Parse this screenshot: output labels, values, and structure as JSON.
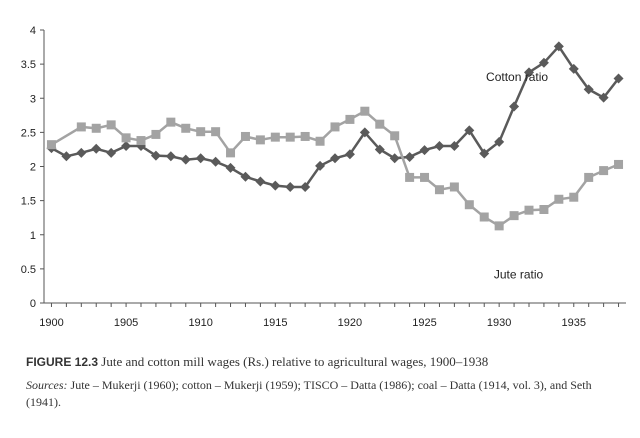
{
  "chart_data": {
    "type": "line",
    "title": "",
    "xlabel": "",
    "ylabel": "",
    "xlim": [
      1899.5,
      1938.5
    ],
    "ylim": [
      0,
      4
    ],
    "grid": false,
    "x_ticks": [
      1900,
      1905,
      1910,
      1915,
      1920,
      1925,
      1930,
      1935
    ],
    "y_ticks": [
      0,
      0.5,
      1,
      1.5,
      2,
      2.5,
      3,
      3.5,
      4
    ],
    "x_tick_labels": [
      "1900",
      "1905",
      "1910",
      "1915",
      "1920",
      "1925",
      "1930",
      "1935"
    ],
    "y_tick_labels": [
      "0",
      "0.5",
      "1",
      "1.5",
      "2",
      "2.5",
      "3",
      "3.5",
      "4"
    ],
    "series": [
      {
        "name": "Cotton ratio",
        "marker": "diamond",
        "color": "#5a5a5a",
        "x": [
          1900,
          1901,
          1902,
          1903,
          1904,
          1905,
          1906,
          1907,
          1908,
          1909,
          1910,
          1911,
          1912,
          1913,
          1914,
          1915,
          1916,
          1917,
          1918,
          1919,
          1920,
          1921,
          1922,
          1923,
          1924,
          1925,
          1926,
          1927,
          1928,
          1929,
          1930,
          1931,
          1932,
          1933,
          1934,
          1935,
          1936,
          1937,
          1938
        ],
        "values": [
          2.27,
          2.15,
          2.2,
          2.26,
          2.2,
          2.3,
          2.3,
          2.16,
          2.15,
          2.1,
          2.12,
          2.07,
          1.98,
          1.85,
          1.78,
          1.72,
          1.7,
          1.7,
          2.01,
          2.12,
          2.18,
          2.5,
          2.25,
          2.12,
          2.14,
          2.24,
          2.3,
          2.3,
          2.53,
          2.19,
          2.36,
          2.88,
          3.38,
          3.52,
          3.76,
          3.43,
          3.13,
          3.01,
          3.29
        ]
      },
      {
        "name": "Jute ratio",
        "marker": "square",
        "color": "#a3a3a3",
        "x": [
          1900,
          1902,
          1903,
          1904,
          1905,
          1906,
          1907,
          1908,
          1909,
          1910,
          1911,
          1912,
          1913,
          1914,
          1915,
          1916,
          1917,
          1918,
          1919,
          1920,
          1921,
          1922,
          1923,
          1924,
          1925,
          1926,
          1927,
          1928,
          1929,
          1930,
          1931,
          1932,
          1933,
          1934,
          1935,
          1936,
          1937,
          1938
        ],
        "values": [
          2.32,
          2.58,
          2.56,
          2.61,
          2.42,
          2.38,
          2.47,
          2.65,
          2.56,
          2.51,
          2.51,
          2.2,
          2.44,
          2.39,
          2.43,
          2.43,
          2.44,
          2.37,
          2.58,
          2.69,
          2.81,
          2.62,
          2.45,
          1.84,
          1.84,
          1.66,
          1.7,
          1.44,
          1.26,
          1.13,
          1.28,
          1.36,
          1.37,
          1.52,
          1.55,
          1.84,
          1.94,
          2.03
        ]
      }
    ],
    "annotations": [
      "Cotton ratio",
      "Jute ratio"
    ]
  },
  "caption": {
    "figure_label": "FIGURE 12.3",
    "title": "Jute and cotton mill wages (Rs.) relative to agricultural wages, 1900–1938",
    "sources_label": "Sources:",
    "sources_text": "Jute – Mukerji (1960); cotton – Mukerji (1959); TISCO – Datta (1986); coal – Datta (1914, vol. 3), and Seth (1941)."
  }
}
